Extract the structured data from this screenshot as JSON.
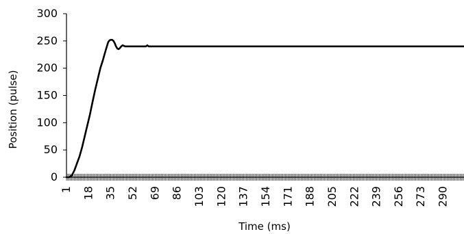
{
  "chart_data": {
    "type": "line",
    "title": "",
    "xlabel": "Time (ms)",
    "ylabel": "Position (pulse)",
    "ylim": [
      0,
      300
    ],
    "yticks": [
      0,
      50,
      100,
      150,
      200,
      250,
      300
    ],
    "xlim": [
      1,
      306
    ],
    "xtick_labels": [
      "1",
      "18",
      "35",
      "52",
      "69",
      "86",
      "103",
      "120",
      "137",
      "154",
      "171",
      "188",
      "205",
      "222",
      "239",
      "256",
      "273",
      "290"
    ],
    "grid": false,
    "legend": "none",
    "series": [
      {
        "name": "",
        "color": "#000000",
        "x": [
          1,
          3,
          5,
          7,
          9,
          11,
          13,
          15,
          17,
          19,
          21,
          23,
          25,
          27,
          29,
          31,
          33,
          34,
          35,
          36,
          37,
          38,
          39,
          40,
          41,
          42,
          43,
          44,
          45,
          46,
          47,
          48,
          49,
          50,
          52,
          55,
          58,
          60,
          62,
          63,
          64,
          66,
          70,
          80,
          100,
          150,
          200,
          250,
          300,
          306
        ],
        "y": [
          0,
          0,
          3,
          12,
          25,
          38,
          55,
          75,
          95,
          115,
          138,
          160,
          180,
          200,
          215,
          232,
          248,
          251,
          252,
          252,
          250,
          246,
          240,
          236,
          235,
          237,
          240,
          242,
          241,
          240,
          240,
          240,
          240,
          240,
          240,
          240,
          240,
          240,
          240,
          242,
          240,
          240,
          240,
          240,
          240,
          240,
          240,
          240,
          240,
          240
        ]
      }
    ]
  }
}
